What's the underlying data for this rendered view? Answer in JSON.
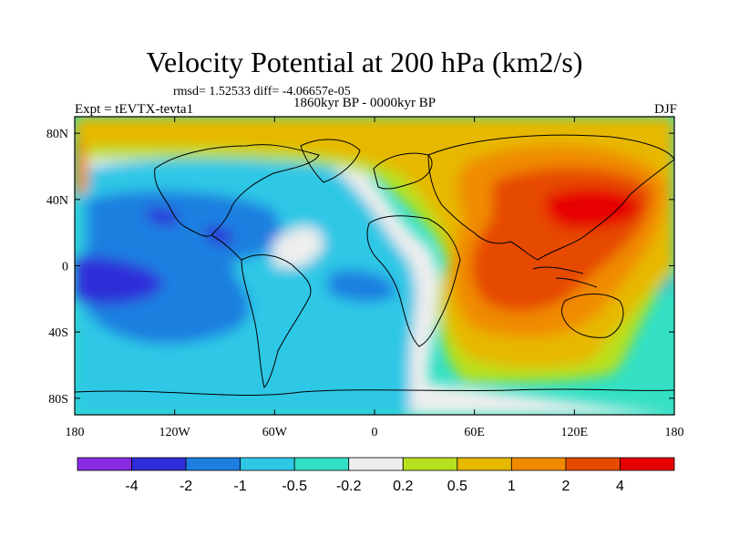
{
  "title": "Velocity Potential at 200 hPa (km2/s)",
  "stats_line": "rmsd= 1.52533 diff= -4.06657e-05",
  "period": "1860kyr BP - 0000kyr BP",
  "experiment": "Expt = tEVTX-tevta1",
  "season": "DJF",
  "lon_ticks": [
    "180",
    "120W",
    "60W",
    "0",
    "60E",
    "120E",
    "180"
  ],
  "lat_ticks": [
    "80N",
    "40N",
    "0",
    "40S",
    "80S"
  ],
  "colorbar": {
    "labels": [
      "-4",
      "-2",
      "-1",
      "-0.5",
      "-0.2",
      "0.2",
      "0.5",
      "1",
      "2",
      "4"
    ],
    "colors": [
      "#8a2be2",
      "#2f2fd9",
      "#1e7fe0",
      "#2ec7e6",
      "#33e0c4",
      "#eeeeee",
      "#b7e01e",
      "#e7b800",
      "#f08b00",
      "#e64a00",
      "#e60000"
    ]
  },
  "field_colors": {
    "deep_neg": "#2f2fd9",
    "neg": "#1e7fe0",
    "weak_neg": "#2ec7e6",
    "near_zero_neg": "#33e0c4",
    "neutral": "#eeeeee",
    "weak_pos": "#b7e01e",
    "pos": "#e7b800",
    "mid_pos": "#f08b00",
    "strong_pos": "#e64a00",
    "max_pos": "#e60000"
  }
}
